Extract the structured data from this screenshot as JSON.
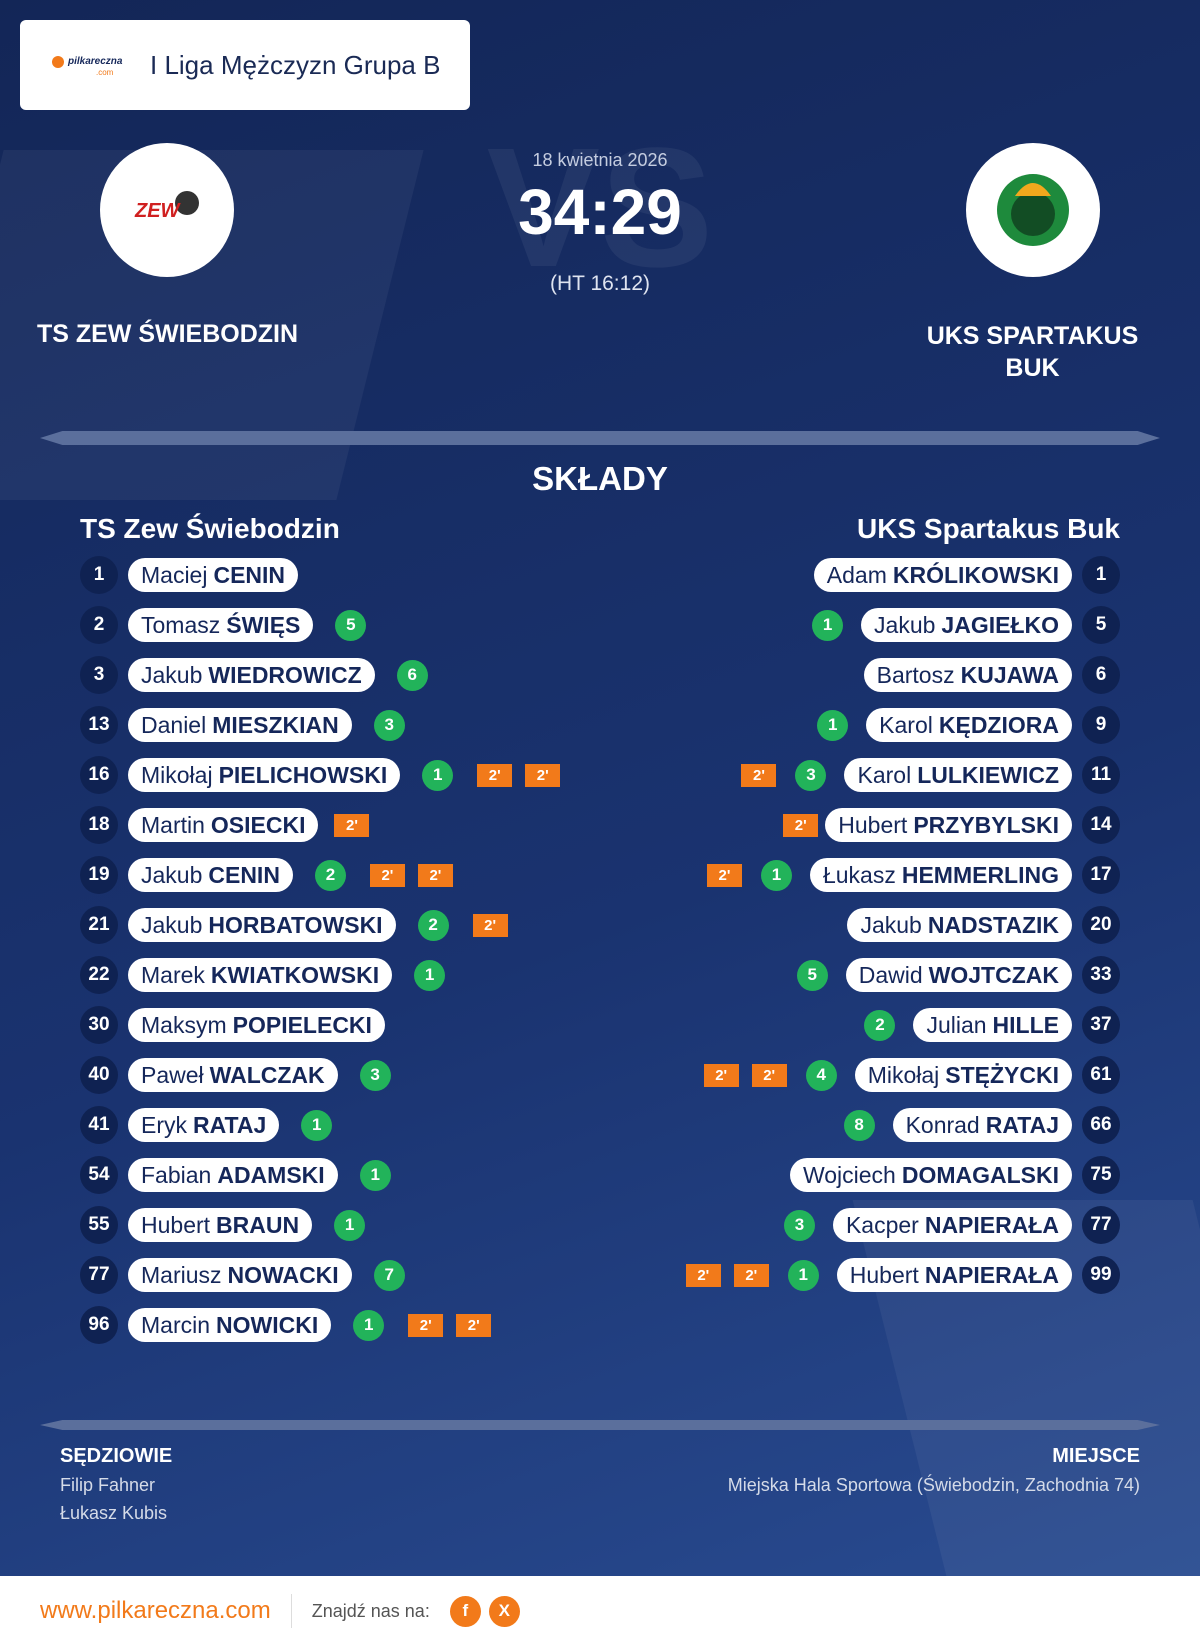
{
  "header": {
    "brand": "pilkareczna",
    "brand_suffix": ".com",
    "league": "I Liga Mężczyzn Grupa B"
  },
  "match": {
    "date": "18 kwietnia 2026",
    "watermark": "VS",
    "score": "34:29",
    "halftime": "(HT 16:12)",
    "home": {
      "name": "TS ZEW ŚWIEBODZIN",
      "logo_text": "ZEW"
    },
    "away": {
      "name": "UKS SPARTAKUS BUK"
    }
  },
  "lineups": {
    "title": "SKŁADY",
    "home": {
      "team": "TS Zew Świebodzin",
      "players": [
        {
          "number": 1,
          "first": "Maciej",
          "last": "CENIN"
        },
        {
          "number": 2,
          "first": "Tomasz",
          "last": "ŚWIĘS",
          "goals": 5
        },
        {
          "number": 3,
          "first": "Jakub",
          "last": "WIEDROWICZ",
          "goals": 6
        },
        {
          "number": 13,
          "first": "Daniel",
          "last": "MIESZKIAN",
          "goals": 3
        },
        {
          "number": 16,
          "first": "Mikołaj",
          "last": "PIELICHOWSKI",
          "goals": 1,
          "penalties": [
            "2'",
            "2'"
          ]
        },
        {
          "number": 18,
          "first": "Martin",
          "last": "OSIECKI",
          "penalties": [
            "2'"
          ]
        },
        {
          "number": 19,
          "first": "Jakub",
          "last": "CENIN",
          "goals": 2,
          "penalties": [
            "2'",
            "2'"
          ]
        },
        {
          "number": 21,
          "first": "Jakub",
          "last": "HORBATOWSKI",
          "goals": 2,
          "penalties": [
            "2'"
          ]
        },
        {
          "number": 22,
          "first": "Marek",
          "last": "KWIATKOWSKI",
          "goals": 1
        },
        {
          "number": 30,
          "first": "Maksym",
          "last": "POPIELECKI"
        },
        {
          "number": 40,
          "first": "Paweł",
          "last": "WALCZAK",
          "goals": 3
        },
        {
          "number": 41,
          "first": "Eryk",
          "last": "RATAJ",
          "goals": 1
        },
        {
          "number": 54,
          "first": "Fabian",
          "last": "ADAMSKI",
          "goals": 1
        },
        {
          "number": 55,
          "first": "Hubert",
          "last": "BRAUN",
          "goals": 1
        },
        {
          "number": 77,
          "first": "Mariusz",
          "last": "NOWACKI",
          "goals": 7
        },
        {
          "number": 96,
          "first": "Marcin",
          "last": "NOWICKI",
          "goals": 1,
          "penalties": [
            "2'",
            "2'"
          ]
        }
      ]
    },
    "away": {
      "team": "UKS Spartakus Buk",
      "players": [
        {
          "number": 1,
          "first": "Adam",
          "last": "KRÓLIKOWSKI"
        },
        {
          "number": 5,
          "first": "Jakub",
          "last": "JAGIEŁKO",
          "goals": 1
        },
        {
          "number": 6,
          "first": "Bartosz",
          "last": "KUJAWA"
        },
        {
          "number": 9,
          "first": "Karol",
          "last": "KĘDZIORA",
          "goals": 1
        },
        {
          "number": 11,
          "first": "Karol",
          "last": "LULKIEWICZ",
          "goals": 3,
          "penalties": [
            "2'"
          ]
        },
        {
          "number": 14,
          "first": "Hubert",
          "last": "PRZYBYLSKI",
          "penalties": [
            "2'"
          ]
        },
        {
          "number": 17,
          "first": "Łukasz",
          "last": "HEMMERLING",
          "goals": 1,
          "penalties": [
            "2'"
          ]
        },
        {
          "number": 20,
          "first": "Jakub",
          "last": "NADSTAZIK"
        },
        {
          "number": 33,
          "first": "Dawid",
          "last": "WOJTCZAK",
          "goals": 5
        },
        {
          "number": 37,
          "first": "Julian",
          "last": "HILLE",
          "goals": 2
        },
        {
          "number": 61,
          "first": "Mikołaj",
          "last": "STĘŻYCKI",
          "goals": 4,
          "penalties": [
            "2'",
            "2'"
          ]
        },
        {
          "number": 66,
          "first": "Konrad",
          "last": "RATAJ",
          "goals": 8
        },
        {
          "number": 75,
          "first": "Wojciech",
          "last": "DOMAGALSKI"
        },
        {
          "number": 77,
          "first": "Kacper",
          "last": "NAPIERAŁA",
          "goals": 3
        },
        {
          "number": 99,
          "first": "Hubert",
          "last": "NAPIERAŁA",
          "goals": 1,
          "penalties": [
            "2'",
            "2'"
          ]
        }
      ]
    }
  },
  "officials": {
    "title": "SĘDZIOWIE",
    "names": [
      "Filip Fahner",
      "Łukasz Kubis"
    ]
  },
  "venue": {
    "title": "MIEJSCE",
    "name": "Miejska Hala Sportowa (Świebodzin, Zachodnia 74)"
  },
  "footer": {
    "url": "www.pilkareczna.com",
    "find_us": "Znajdź nas na:",
    "social": [
      "f",
      "X"
    ]
  }
}
